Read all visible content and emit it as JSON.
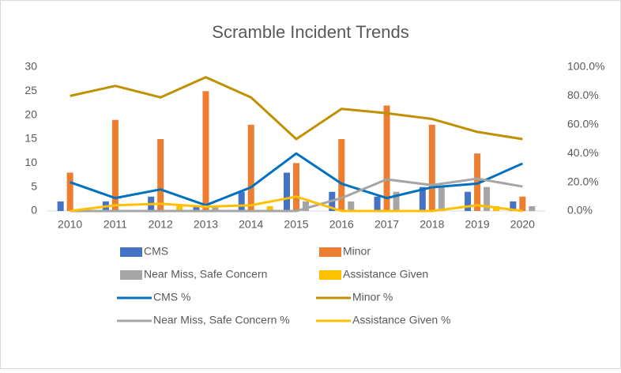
{
  "chart_data": {
    "type": "bar_line",
    "title": "Scramble Incident Trends",
    "categories": [
      "2010",
      "2011",
      "2012",
      "2013",
      "2014",
      "2015",
      "2016",
      "2017",
      "2018",
      "2019",
      "2020"
    ],
    "series": [
      {
        "name": "CMS",
        "color": "#4472c4",
        "values": [
          2,
          2,
          3,
          1,
          4,
          8,
          4,
          3,
          5,
          4,
          2
        ]
      },
      {
        "name": "Minor",
        "color": "#ed7d31",
        "values": [
          8,
          19,
          15,
          25,
          18,
          10,
          15,
          22,
          18,
          12,
          3
        ]
      },
      {
        "name": "Near Miss, Safe Concern",
        "color": "#a5a5a5",
        "values": [
          0,
          0,
          0,
          1,
          0,
          2,
          2,
          4,
          5,
          5,
          1
        ]
      },
      {
        "name": "Assistance Given",
        "color": "#ffc000",
        "values": [
          0,
          0,
          1,
          0,
          1,
          0,
          0,
          0,
          0,
          1,
          0
        ]
      },
      {
        "name": "CMS %",
        "color": "#0070c0",
        "axis": "y2",
        "values": [
          20,
          9,
          15,
          4,
          16.5,
          40,
          19,
          9,
          16.5,
          19,
          33
        ]
      },
      {
        "name": "Minor %",
        "color": "#bf9000",
        "axis": "y2",
        "values": [
          80,
          87,
          79,
          93,
          79,
          50,
          71,
          68,
          64,
          55,
          50
        ]
      },
      {
        "name": "Near Miss, Safe Concern %",
        "color": "#a5a5a5",
        "axis": "y2",
        "values": [
          0,
          0,
          0,
          0,
          0,
          0,
          9,
          22,
          18,
          22.5,
          17
        ]
      },
      {
        "name": "Assistance Given %",
        "color": "#ffc000",
        "axis": "y2",
        "values": [
          0,
          4,
          5,
          3,
          4,
          10,
          0,
          0,
          0,
          4,
          0
        ]
      }
    ],
    "ylim": [
      0,
      30
    ],
    "yticks": [
      0,
      5,
      10,
      15,
      20,
      25,
      30
    ],
    "y2lim": [
      0,
      100
    ],
    "y2ticks": [
      {
        "value": 0,
        "label": "0.0%"
      },
      {
        "value": 20,
        "label": "20.0%"
      },
      {
        "value": 40,
        "label": "40.0%"
      },
      {
        "value": 60,
        "label": "60.0%"
      },
      {
        "value": 80,
        "label": "80.0%"
      },
      {
        "value": 100,
        "label": "100.0%"
      }
    ],
    "legend": "bottom",
    "grid": false
  }
}
